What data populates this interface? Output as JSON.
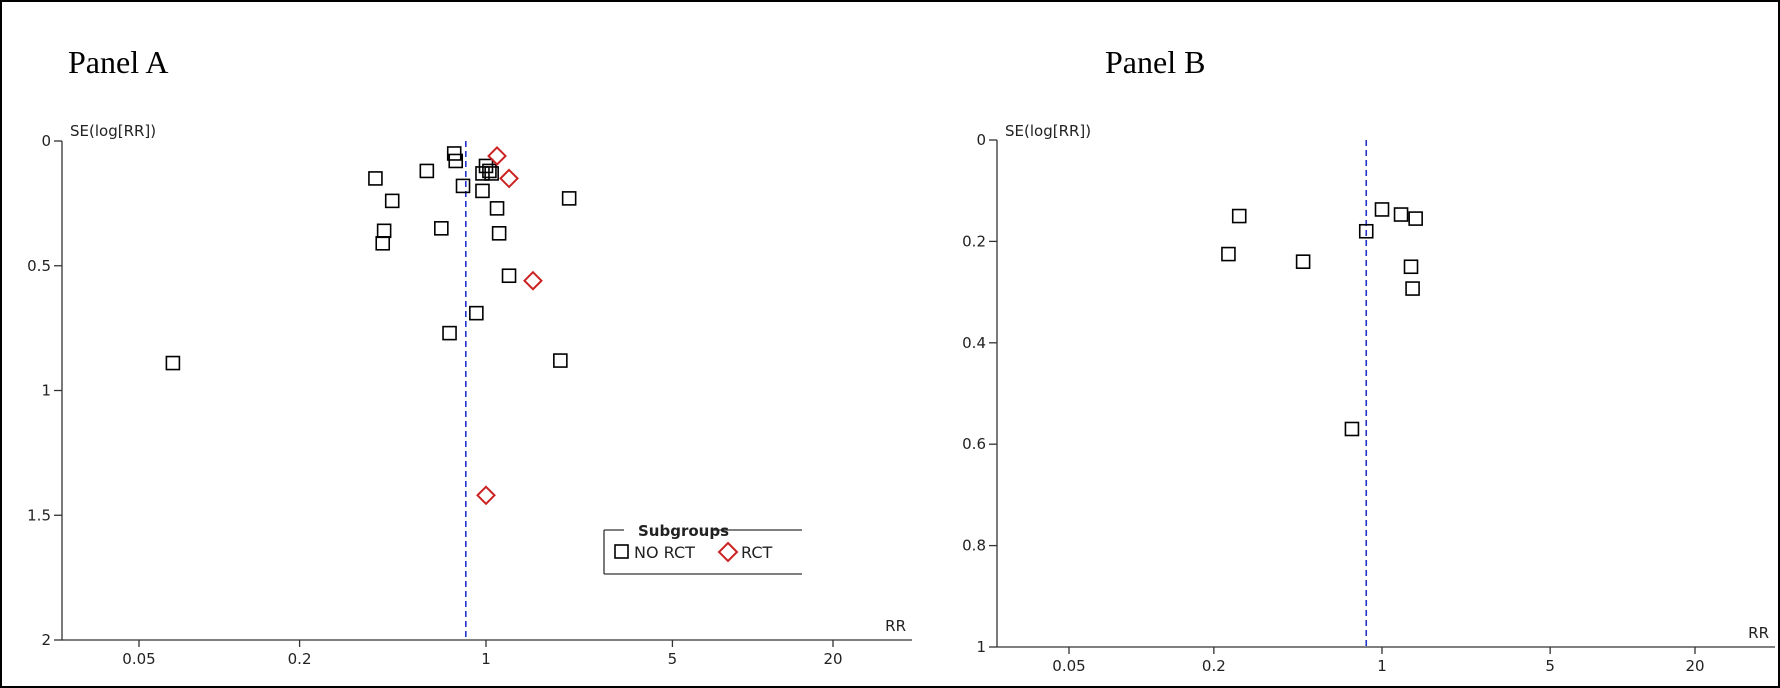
{
  "chart_data": [
    {
      "type": "scatter",
      "title": "Panel A",
      "ylabel": "SE(log[RR])",
      "xlabel": "RR",
      "x_scale": "log",
      "y_reversed": true,
      "xlim": [
        0.03,
        30
      ],
      "ylim": [
        0,
        2
      ],
      "x_ticks": [
        0.05,
        0.2,
        1,
        5,
        20
      ],
      "x_tick_labels": [
        "0.05",
        "0.2",
        "1",
        "5",
        "20"
      ],
      "y_ticks": [
        0,
        0.5,
        1,
        1.5,
        2
      ],
      "y_tick_labels": [
        "0",
        "0.5",
        "1",
        "1.5",
        "2"
      ],
      "reference_line_x": 0.84,
      "legend": {
        "title": "Subgroups",
        "position": "bottom-right",
        "entries": [
          {
            "label": "NO RCT",
            "marker": "square",
            "color": "#000000"
          },
          {
            "label": "RCT",
            "marker": "diamond",
            "color": "#cc2222"
          }
        ]
      },
      "series": [
        {
          "name": "NO RCT",
          "marker": "square",
          "color": "#000000",
          "points": [
            {
              "x": 0.067,
              "y": 0.89
            },
            {
              "x": 0.385,
              "y": 0.15
            },
            {
              "x": 0.445,
              "y": 0.24
            },
            {
              "x": 0.415,
              "y": 0.36
            },
            {
              "x": 0.41,
              "y": 0.41
            },
            {
              "x": 0.6,
              "y": 0.12
            },
            {
              "x": 0.68,
              "y": 0.35
            },
            {
              "x": 0.76,
              "y": 0.05
            },
            {
              "x": 0.77,
              "y": 0.08
            },
            {
              "x": 0.82,
              "y": 0.18
            },
            {
              "x": 0.73,
              "y": 0.77
            },
            {
              "x": 0.92,
              "y": 0.69
            },
            {
              "x": 0.97,
              "y": 0.13
            },
            {
              "x": 1.0,
              "y": 0.1
            },
            {
              "x": 1.03,
              "y": 0.12
            },
            {
              "x": 1.05,
              "y": 0.13
            },
            {
              "x": 0.97,
              "y": 0.2
            },
            {
              "x": 1.1,
              "y": 0.27
            },
            {
              "x": 1.12,
              "y": 0.37
            },
            {
              "x": 1.22,
              "y": 0.54
            },
            {
              "x": 1.9,
              "y": 0.88
            },
            {
              "x": 2.05,
              "y": 0.23
            }
          ]
        },
        {
          "name": "RCT",
          "marker": "diamond",
          "color": "#cc2222",
          "points": [
            {
              "x": 1.1,
              "y": 0.06
            },
            {
              "x": 1.22,
              "y": 0.15
            },
            {
              "x": 1.5,
              "y": 0.56
            },
            {
              "x": 1.0,
              "y": 1.42
            }
          ]
        }
      ]
    },
    {
      "type": "scatter",
      "title": "Panel B",
      "ylabel": "SE(log[RR])",
      "xlabel": "RR",
      "x_scale": "log",
      "y_reversed": true,
      "xlim": [
        0.03,
        30
      ],
      "ylim": [
        0,
        1
      ],
      "x_ticks": [
        0.05,
        0.2,
        1,
        5,
        20
      ],
      "x_tick_labels": [
        "0.05",
        "0.2",
        "1",
        "5",
        "20"
      ],
      "y_ticks": [
        0,
        0.2,
        0.4,
        0.6,
        0.8,
        1
      ],
      "y_tick_labels": [
        "0",
        "0.2",
        "0.4",
        "0.6",
        "0.8",
        "1"
      ],
      "reference_line_x": 0.86,
      "series": [
        {
          "name": "NO RCT",
          "marker": "square",
          "color": "#000000",
          "points": [
            {
              "x": 0.255,
              "y": 0.15
            },
            {
              "x": 0.23,
              "y": 0.225
            },
            {
              "x": 0.47,
              "y": 0.24
            },
            {
              "x": 0.86,
              "y": 0.18
            },
            {
              "x": 0.75,
              "y": 0.57
            },
            {
              "x": 1.0,
              "y": 0.137
            },
            {
              "x": 1.2,
              "y": 0.147
            },
            {
              "x": 1.38,
              "y": 0.155
            },
            {
              "x": 1.32,
              "y": 0.25
            },
            {
              "x": 1.34,
              "y": 0.293
            }
          ]
        }
      ]
    }
  ]
}
